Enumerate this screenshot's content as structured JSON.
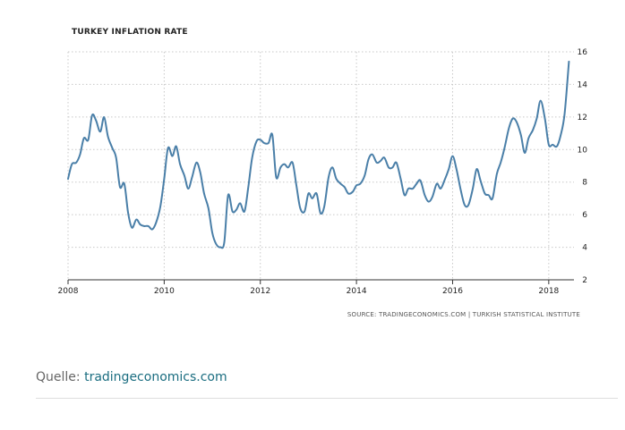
{
  "chart_data": {
    "type": "line",
    "title": "TURKEY INFLATION RATE",
    "source": "SOURCE: TRADINGECONOMICS.COM | TURKISH STATISTICAL INSTITUTE",
    "xlabel": "",
    "ylabel": "",
    "xlim": [
      2008,
      2018.45
    ],
    "ylim": [
      2,
      16
    ],
    "x_ticks": [
      2008,
      2010,
      2012,
      2014,
      2016,
      2018
    ],
    "y_ticks": [
      2,
      4,
      6,
      8,
      10,
      12,
      14,
      16
    ],
    "grid": true,
    "series": [
      {
        "name": "Turkey Inflation Rate",
        "color": "#4a7fa8",
        "x": [
          2008.0,
          2008.08,
          2008.17,
          2008.25,
          2008.33,
          2008.42,
          2008.5,
          2008.58,
          2008.67,
          2008.75,
          2008.83,
          2008.92,
          2009.0,
          2009.08,
          2009.17,
          2009.25,
          2009.33,
          2009.42,
          2009.5,
          2009.58,
          2009.67,
          2009.75,
          2009.83,
          2009.92,
          2010.0,
          2010.08,
          2010.17,
          2010.25,
          2010.33,
          2010.42,
          2010.5,
          2010.58,
          2010.67,
          2010.75,
          2010.83,
          2010.92,
          2011.0,
          2011.08,
          2011.17,
          2011.25,
          2011.33,
          2011.42,
          2011.5,
          2011.58,
          2011.67,
          2011.75,
          2011.83,
          2011.92,
          2012.0,
          2012.08,
          2012.17,
          2012.25,
          2012.33,
          2012.42,
          2012.5,
          2012.58,
          2012.67,
          2012.75,
          2012.83,
          2012.92,
          2013.0,
          2013.08,
          2013.17,
          2013.25,
          2013.33,
          2013.42,
          2013.5,
          2013.58,
          2013.67,
          2013.75,
          2013.83,
          2013.92,
          2014.0,
          2014.08,
          2014.17,
          2014.25,
          2014.33,
          2014.42,
          2014.5,
          2014.58,
          2014.67,
          2014.75,
          2014.83,
          2014.92,
          2015.0,
          2015.08,
          2015.17,
          2015.25,
          2015.33,
          2015.42,
          2015.5,
          2015.58,
          2015.67,
          2015.75,
          2015.83,
          2015.92,
          2016.0,
          2016.08,
          2016.17,
          2016.25,
          2016.33,
          2016.42,
          2016.5,
          2016.58,
          2016.67,
          2016.75,
          2016.83,
          2016.92,
          2017.0,
          2017.08,
          2017.17,
          2017.25,
          2017.33,
          2017.42,
          2017.5,
          2017.58,
          2017.67,
          2017.75,
          2017.83,
          2017.92,
          2018.0,
          2018.08,
          2018.17,
          2018.25,
          2018.33,
          2018.42
        ],
        "values": [
          8.2,
          9.1,
          9.2,
          9.7,
          10.7,
          10.6,
          12.1,
          11.8,
          11.1,
          11.99,
          10.8,
          10.1,
          9.5,
          7.7,
          7.9,
          6.1,
          5.2,
          5.7,
          5.4,
          5.3,
          5.3,
          5.1,
          5.5,
          6.5,
          8.2,
          10.1,
          9.6,
          10.2,
          9.1,
          8.4,
          7.6,
          8.3,
          9.2,
          8.6,
          7.3,
          6.4,
          4.9,
          4.2,
          4.0,
          4.3,
          7.2,
          6.2,
          6.3,
          6.7,
          6.2,
          7.7,
          9.5,
          10.5,
          10.6,
          10.4,
          10.4,
          10.9,
          8.3,
          8.9,
          9.1,
          8.9,
          9.2,
          7.8,
          6.4,
          6.2,
          7.3,
          7.0,
          7.3,
          6.1,
          6.5,
          8.3,
          8.9,
          8.2,
          7.9,
          7.7,
          7.3,
          7.4,
          7.8,
          7.9,
          8.4,
          9.4,
          9.7,
          9.2,
          9.3,
          9.5,
          8.9,
          8.9,
          9.2,
          8.2,
          7.2,
          7.6,
          7.6,
          7.9,
          8.1,
          7.2,
          6.8,
          7.1,
          7.9,
          7.6,
          8.1,
          8.8,
          9.6,
          8.8,
          7.5,
          6.6,
          6.6,
          7.6,
          8.8,
          8.1,
          7.3,
          7.2,
          7.0,
          8.5,
          9.2,
          10.1,
          11.3,
          11.9,
          11.7,
          10.9,
          9.8,
          10.7,
          11.2,
          11.9,
          13.0,
          11.9,
          10.3,
          10.3,
          10.2,
          10.9,
          12.2,
          15.4
        ]
      }
    ]
  },
  "footer": {
    "prefix": "Quelle: ",
    "link_text": "tradingeconomics.com"
  }
}
